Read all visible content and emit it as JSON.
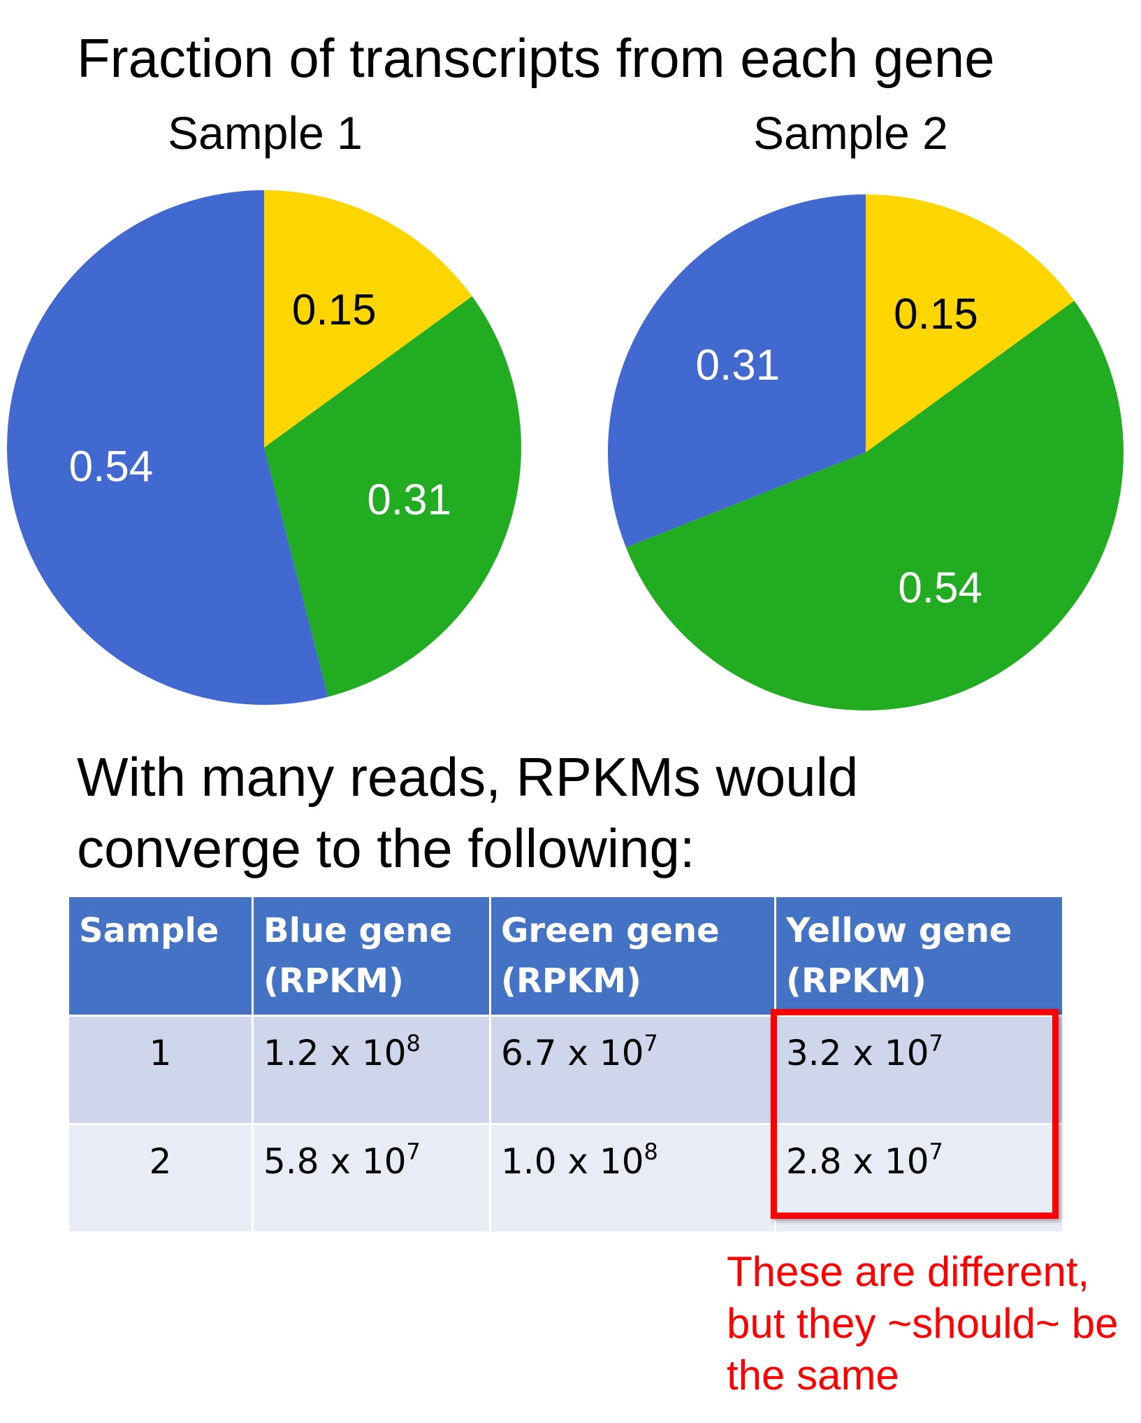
{
  "title": "Fraction of transcripts from each gene",
  "colors": {
    "blue": "#4169cf",
    "green": "#22ac22",
    "yellow": "#fdd600",
    "header": "#4472c4",
    "highlight": "#ff0000"
  },
  "chart_data": [
    {
      "type": "pie",
      "title": "Sample 1",
      "slices": [
        {
          "label": "0.15",
          "value": 0.15,
          "color": "#fdd600",
          "text_color": "#000000"
        },
        {
          "label": "0.31",
          "value": 0.31,
          "color": "#22ac22",
          "text_color": "#ffffff"
        },
        {
          "label": "0.54",
          "value": 0.54,
          "color": "#4169cf",
          "text_color": "#ffffff"
        }
      ]
    },
    {
      "type": "pie",
      "title": "Sample 2",
      "slices": [
        {
          "label": "0.15",
          "value": 0.15,
          "color": "#fdd600",
          "text_color": "#000000"
        },
        {
          "label": "0.54",
          "value": 0.54,
          "color": "#22ac22",
          "text_color": "#ffffff"
        },
        {
          "label": "0.31",
          "value": 0.31,
          "color": "#4169cf",
          "text_color": "#ffffff"
        }
      ]
    }
  ],
  "subtitle": "With many reads, RPKMs would converge to the following:",
  "table": {
    "headers": [
      "Sample",
      "Blue gene (RPKM)",
      "Green gene (RPKM)",
      "Yellow gene (RPKM)"
    ],
    "rows": [
      {
        "sample": "1",
        "blue": {
          "mantissa": "1.2 x 10",
          "exp": "8"
        },
        "green": {
          "mantissa": "6.7 x 10",
          "exp": "7"
        },
        "yellow": {
          "mantissa": "3.2 x 10",
          "exp": "7"
        }
      },
      {
        "sample": "2",
        "blue": {
          "mantissa": "5.8 x 10",
          "exp": "7"
        },
        "green": {
          "mantissa": "1.0 x 10",
          "exp": "8"
        },
        "yellow": {
          "mantissa": "2.8 x 10",
          "exp": "7"
        }
      }
    ]
  },
  "annotation": "These are different, but they ~should~ be the same"
}
